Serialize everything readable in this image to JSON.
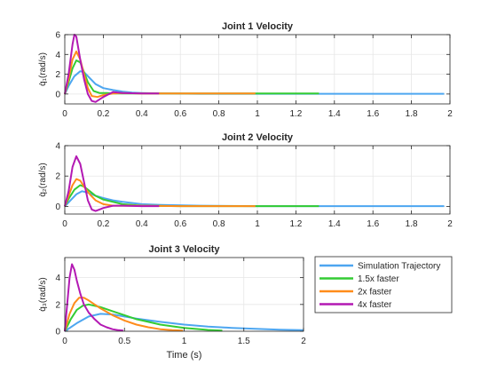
{
  "colors": {
    "sim": "#4DA6F0",
    "x1_5": "#33CC33",
    "x2": "#FF8C1A",
    "x4": "#B319B3",
    "axis": "#262626",
    "grid": "#e6e6e6"
  },
  "legend": {
    "entries": [
      {
        "label": "Simulation Trajectory",
        "color": "#4DA6F0"
      },
      {
        "label": "1.5x faster",
        "color": "#33CC33"
      },
      {
        "label": "2x faster",
        "color": "#FF8C1A"
      },
      {
        "label": "4x faster",
        "color": "#B319B3"
      }
    ]
  },
  "chart_data": [
    {
      "type": "line",
      "title": "Joint 1 Velocity",
      "xlabel": "",
      "ylabel": "q̇₁(rad/s)",
      "xlim": [
        0,
        2
      ],
      "ylim": [
        -1,
        6
      ],
      "xticks": [
        0,
        0.2,
        0.4,
        0.6,
        0.8,
        1,
        1.2,
        1.4,
        1.6,
        1.8,
        2
      ],
      "yticks": [
        0,
        2,
        4,
        6
      ],
      "grid": true,
      "series": [
        {
          "name": "Simulation Trajectory",
          "color": "#4DA6F0",
          "x": [
            0,
            0.02,
            0.05,
            0.08,
            0.1,
            0.13,
            0.16,
            0.2,
            0.25,
            0.3,
            0.35,
            0.4,
            0.5,
            0.7,
            1.0,
            1.4,
            1.97
          ],
          "y": [
            0,
            0.8,
            1.8,
            2.3,
            2.2,
            1.6,
            1.0,
            0.6,
            0.4,
            0.25,
            0.15,
            0.1,
            0.05,
            0.02,
            0.02,
            0.02,
            0.02
          ]
        },
        {
          "name": "1.5x faster",
          "color": "#33CC33",
          "x": [
            0,
            0.02,
            0.04,
            0.06,
            0.08,
            0.1,
            0.12,
            0.15,
            0.18,
            0.22,
            0.26,
            0.3,
            0.4,
            0.6,
            1.0,
            1.32
          ],
          "y": [
            0,
            1.2,
            2.6,
            3.4,
            3.2,
            2.2,
            1.2,
            0.3,
            0.1,
            0.1,
            0.05,
            0.05,
            0.05,
            0.05,
            0.05,
            0.05
          ]
        },
        {
          "name": "2x faster",
          "color": "#FF8C1A",
          "x": [
            0,
            0.02,
            0.04,
            0.06,
            0.08,
            0.1,
            0.12,
            0.14,
            0.17,
            0.2,
            0.25,
            0.3,
            0.4,
            0.6,
            0.8,
            0.99
          ],
          "y": [
            0,
            1.5,
            3.5,
            4.3,
            3.5,
            2.0,
            0.6,
            -0.2,
            -0.3,
            -0.1,
            0.05,
            0.1,
            0.05,
            0.05,
            0.05,
            0.05
          ]
        },
        {
          "name": "4x faster",
          "color": "#B319B3",
          "x": [
            0,
            0.02,
            0.04,
            0.05,
            0.06,
            0.08,
            0.1,
            0.12,
            0.14,
            0.16,
            0.2,
            0.25,
            0.3,
            0.4,
            0.49
          ],
          "y": [
            0,
            2.0,
            5.0,
            6.0,
            5.8,
            3.5,
            1.5,
            0.0,
            -0.7,
            -0.8,
            -0.3,
            0.2,
            0.1,
            0.05,
            0.05
          ]
        }
      ]
    },
    {
      "type": "line",
      "title": "Joint 2 Velocity",
      "xlabel": "",
      "ylabel": "q̇₂(rad/s)",
      "xlim": [
        0,
        2
      ],
      "ylim": [
        -0.5,
        4
      ],
      "xticks": [
        0,
        0.2,
        0.4,
        0.6,
        0.8,
        1,
        1.2,
        1.4,
        1.6,
        1.8,
        2
      ],
      "yticks": [
        0,
        2,
        4
      ],
      "grid": true,
      "series": [
        {
          "name": "Simulation Trajectory",
          "color": "#4DA6F0",
          "x": [
            0,
            0.03,
            0.06,
            0.09,
            0.12,
            0.16,
            0.2,
            0.25,
            0.3,
            0.4,
            0.5,
            0.7,
            1.0,
            1.4,
            1.97
          ],
          "y": [
            0,
            0.4,
            0.8,
            1.0,
            0.9,
            0.7,
            0.55,
            0.4,
            0.3,
            0.15,
            0.1,
            0.05,
            0.02,
            0.02,
            0.02
          ]
        },
        {
          "name": "1.5x faster",
          "color": "#33CC33",
          "x": [
            0,
            0.02,
            0.05,
            0.08,
            0.1,
            0.13,
            0.16,
            0.2,
            0.25,
            0.3,
            0.4,
            0.6,
            1.0,
            1.32
          ],
          "y": [
            0,
            0.5,
            1.1,
            1.4,
            1.3,
            1.0,
            0.7,
            0.45,
            0.3,
            0.15,
            0.05,
            0.02,
            0.02,
            0.02
          ]
        },
        {
          "name": "2x faster",
          "color": "#FF8C1A",
          "x": [
            0,
            0.02,
            0.04,
            0.06,
            0.08,
            0.1,
            0.13,
            0.16,
            0.2,
            0.25,
            0.3,
            0.4,
            0.6,
            0.8,
            0.99
          ],
          "y": [
            0,
            0.7,
            1.4,
            1.8,
            1.7,
            1.3,
            0.8,
            0.4,
            0.15,
            0.05,
            0.05,
            0.05,
            0.02,
            0.02,
            0.02
          ]
        },
        {
          "name": "4x faster",
          "color": "#B319B3",
          "x": [
            0,
            0.02,
            0.04,
            0.06,
            0.08,
            0.1,
            0.12,
            0.14,
            0.16,
            0.18,
            0.2,
            0.25,
            0.3,
            0.4,
            0.49
          ],
          "y": [
            0,
            1.0,
            2.6,
            3.3,
            2.8,
            1.6,
            0.4,
            -0.2,
            -0.3,
            -0.2,
            -0.1,
            0.05,
            0.05,
            0.02,
            0.02
          ]
        }
      ]
    },
    {
      "type": "line",
      "title": "Joint 3 Velocity",
      "xlabel": "Time (s)",
      "ylabel": "q̇₃(rad/s)",
      "xlim": [
        0,
        2
      ],
      "ylim": [
        0,
        5.5
      ],
      "xticks": [
        0,
        0.5,
        1,
        1.5,
        2
      ],
      "yticks": [
        0,
        2,
        4
      ],
      "grid": true,
      "series": [
        {
          "name": "Simulation Trajectory",
          "color": "#4DA6F0",
          "x": [
            0,
            0.1,
            0.2,
            0.3,
            0.4,
            0.5,
            0.6,
            0.8,
            1.0,
            1.2,
            1.4,
            1.6,
            1.8,
            2.0
          ],
          "y": [
            0,
            0.6,
            1.1,
            1.3,
            1.25,
            1.1,
            0.95,
            0.7,
            0.5,
            0.35,
            0.25,
            0.18,
            0.12,
            0.08
          ]
        },
        {
          "name": "1.5x faster",
          "color": "#33CC33",
          "x": [
            0,
            0.05,
            0.1,
            0.15,
            0.2,
            0.3,
            0.4,
            0.5,
            0.6,
            0.7,
            0.8,
            1.0,
            1.2,
            1.32
          ],
          "y": [
            0,
            0.9,
            1.6,
            1.9,
            2.0,
            1.8,
            1.5,
            1.2,
            0.9,
            0.7,
            0.5,
            0.25,
            0.1,
            0.05
          ]
        },
        {
          "name": "2x faster",
          "color": "#FF8C1A",
          "x": [
            0,
            0.04,
            0.08,
            0.12,
            0.16,
            0.2,
            0.25,
            0.3,
            0.4,
            0.5,
            0.6,
            0.7,
            0.8,
            0.9,
            0.99
          ],
          "y": [
            0,
            1.3,
            2.1,
            2.5,
            2.5,
            2.3,
            2.0,
            1.7,
            1.2,
            0.8,
            0.5,
            0.3,
            0.15,
            0.08,
            0.05
          ]
        },
        {
          "name": "4x faster",
          "color": "#B319B3",
          "x": [
            0,
            0.02,
            0.04,
            0.06,
            0.08,
            0.1,
            0.13,
            0.16,
            0.2,
            0.25,
            0.3,
            0.35,
            0.4,
            0.45,
            0.49
          ],
          "y": [
            0,
            2.0,
            4.0,
            5.0,
            4.6,
            3.8,
            2.8,
            2.0,
            1.4,
            0.9,
            0.5,
            0.3,
            0.15,
            0.08,
            0.05
          ]
        }
      ]
    }
  ]
}
